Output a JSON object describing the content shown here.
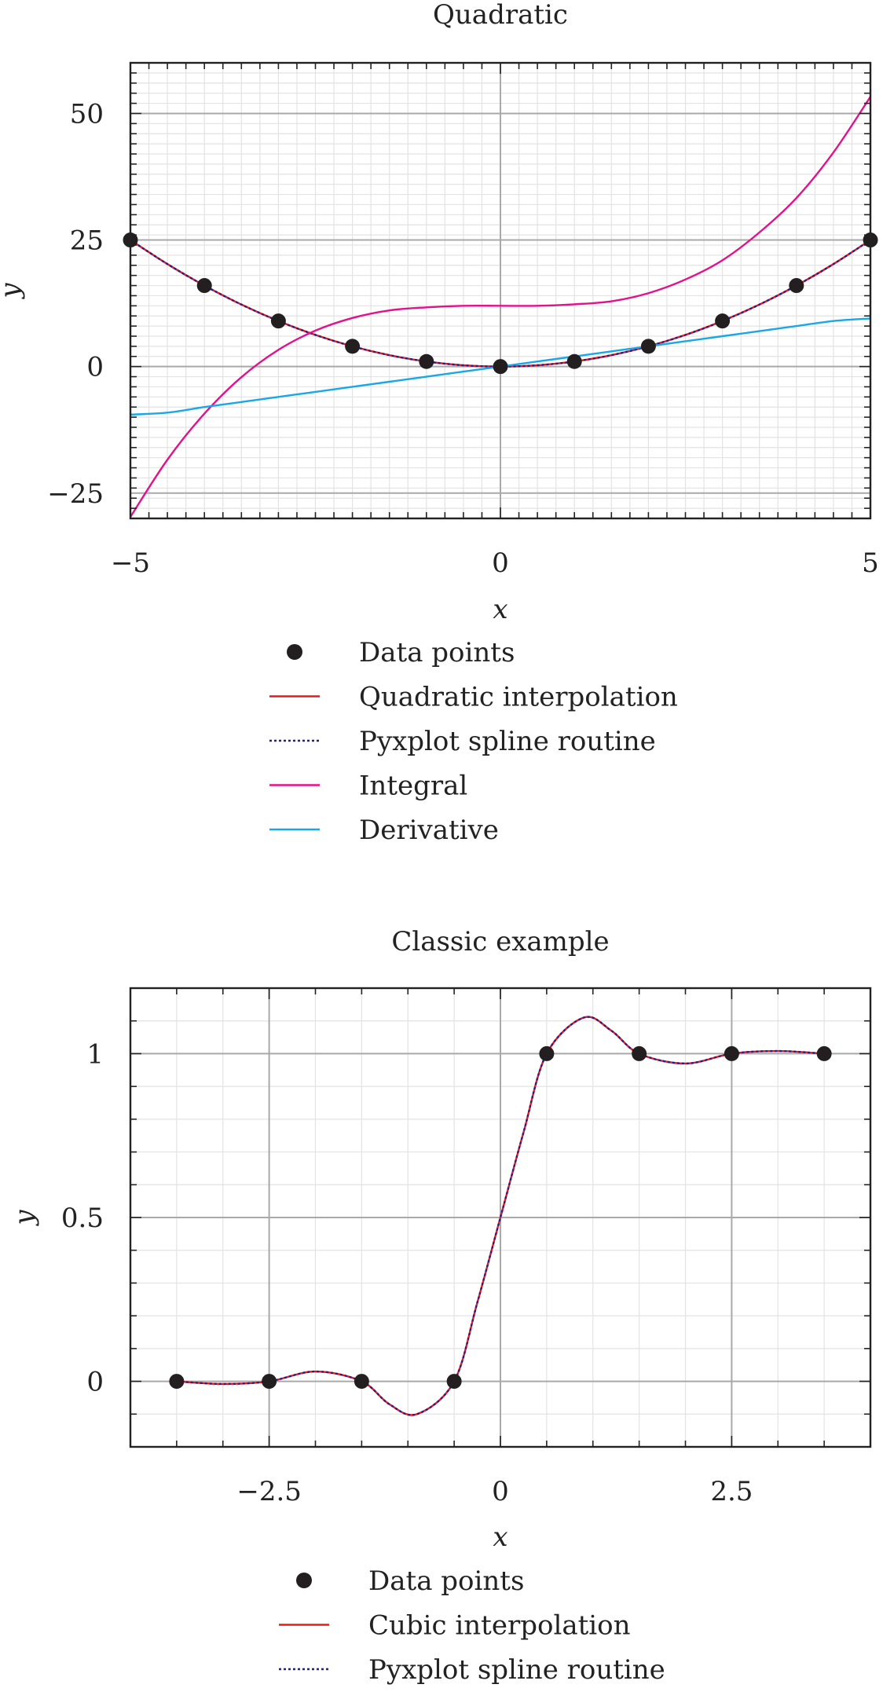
{
  "chart_data": [
    {
      "type": "line",
      "title": "Quadratic",
      "xlabel": "x",
      "ylabel": "y",
      "xlim": [
        -5,
        5
      ],
      "ylim": [
        -30,
        60
      ],
      "grid": true,
      "legend_position": "below",
      "x_ticks": [
        -5,
        0,
        5
      ],
      "x_tick_labels": [
        "−5",
        "0",
        "5"
      ],
      "y_ticks": [
        -25,
        0,
        25,
        50
      ],
      "y_tick_labels": [
        "−25",
        "0",
        "25",
        "50"
      ],
      "series": [
        {
          "name": "Data points",
          "kind": "points",
          "color": "#231f20",
          "x": [
            -5,
            -4,
            -3,
            -2,
            -1,
            0,
            1,
            2,
            3,
            4,
            5
          ],
          "y": [
            25,
            16,
            9,
            4,
            1,
            0,
            1,
            4,
            9,
            16,
            25
          ]
        },
        {
          "name": "Quadratic interpolation",
          "kind": "line",
          "color": "#e41a1c",
          "x": [
            -5,
            -4.5,
            -4,
            -3.5,
            -3,
            -2.5,
            -2,
            -1.5,
            -1,
            -0.5,
            0,
            0.5,
            1,
            1.5,
            2,
            2.5,
            3,
            3.5,
            4,
            4.5,
            5
          ],
          "y": [
            25,
            20.25,
            16,
            12.25,
            9,
            6.25,
            4,
            2.25,
            1,
            0.25,
            0,
            0.25,
            1,
            2.25,
            4,
            6.25,
            9,
            12.25,
            16,
            20.25,
            25
          ]
        },
        {
          "name": "Pyxplot spline routine",
          "kind": "dotted",
          "color": "#1f1f8f",
          "x": [
            -5,
            -4.5,
            -4,
            -3.5,
            -3,
            -2.5,
            -2,
            -1.5,
            -1,
            -0.5,
            0,
            0.5,
            1,
            1.5,
            2,
            2.5,
            3,
            3.5,
            4,
            4.5,
            5
          ],
          "y": [
            25,
            20.25,
            16,
            12.25,
            9,
            6.25,
            4,
            2.25,
            1,
            0.25,
            0,
            0.25,
            1,
            2.25,
            4,
            6.25,
            9,
            12.25,
            16,
            20.25,
            25
          ]
        },
        {
          "name": "Integral",
          "kind": "line",
          "color": "#e0128c",
          "x": [
            -5,
            -4.5,
            -4,
            -3.5,
            -3,
            -2.5,
            -2,
            -1.5,
            -1,
            -0.5,
            0,
            0.5,
            1,
            1.5,
            2,
            2.5,
            3,
            3.5,
            4,
            4.5,
            5
          ],
          "y": [
            -29.7,
            -18.4,
            -9.3,
            -2.1,
            3.3,
            7.1,
            9.6,
            11.1,
            11.7,
            12.0,
            12.0,
            12.0,
            12.3,
            12.9,
            14.5,
            17.2,
            21,
            26.5,
            33.3,
            42.3,
            53.3
          ]
        },
        {
          "name": "Derivative",
          "kind": "line",
          "color": "#1aa7e8",
          "x": [
            -5,
            -4.5,
            -4,
            -3.5,
            -3,
            -2.5,
            -2,
            -1.5,
            -1,
            -0.5,
            0,
            0.5,
            1,
            1.5,
            2,
            2.5,
            3,
            3.5,
            4,
            4.5,
            5
          ],
          "y": [
            -9.5,
            -9.1,
            -8,
            -7,
            -6,
            -5,
            -4,
            -3,
            -2,
            -1,
            0,
            1,
            2,
            3,
            4,
            5,
            6,
            7,
            8,
            9,
            9.5
          ]
        }
      ]
    },
    {
      "type": "line",
      "title": "Classic example",
      "xlabel": "x",
      "ylabel": "y",
      "xlim": [
        -4,
        4
      ],
      "ylim": [
        -0.2,
        1.2
      ],
      "grid": true,
      "legend_position": "below",
      "x_ticks": [
        -2.5,
        0,
        2.5
      ],
      "x_tick_labels": [
        "−2.5",
        "0",
        "2.5"
      ],
      "y_ticks": [
        0,
        0.5,
        1
      ],
      "y_tick_labels": [
        "0",
        "0.5",
        "1"
      ],
      "series": [
        {
          "name": "Data points",
          "kind": "points",
          "color": "#231f20",
          "x": [
            -3.5,
            -2.5,
            -1.5,
            -0.5,
            0.5,
            1.5,
            2.5,
            3.5
          ],
          "y": [
            0,
            0,
            0,
            0,
            1,
            1,
            1,
            1
          ]
        },
        {
          "name": "Cubic interpolation",
          "kind": "line",
          "color": "#e41a1c",
          "x": [
            -3.5,
            -3.0,
            -2.5,
            -2.0,
            -1.5,
            -1.2,
            -0.9,
            -0.5,
            -0.25,
            0,
            0.25,
            0.5,
            0.9,
            1.2,
            1.5,
            2.0,
            2.5,
            3.0,
            3.5
          ],
          "y": [
            0,
            -0.008,
            0,
            0.03,
            0,
            -0.07,
            -0.1,
            0,
            0.24,
            0.5,
            0.76,
            1,
            1.11,
            1.07,
            1,
            0.97,
            1,
            1.008,
            1
          ]
        },
        {
          "name": "Pyxplot spline routine",
          "kind": "dotted",
          "color": "#1f1f8f",
          "x": [
            -3.5,
            -3.0,
            -2.5,
            -2.0,
            -1.5,
            -1.2,
            -0.9,
            -0.5,
            -0.25,
            0,
            0.25,
            0.5,
            0.9,
            1.2,
            1.5,
            2.0,
            2.5,
            3.0,
            3.5
          ],
          "y": [
            0,
            -0.008,
            0,
            0.03,
            0,
            -0.07,
            -0.1,
            0,
            0.24,
            0.5,
            0.76,
            1,
            1.11,
            1.07,
            1,
            0.97,
            1,
            1.008,
            1
          ]
        }
      ]
    }
  ]
}
